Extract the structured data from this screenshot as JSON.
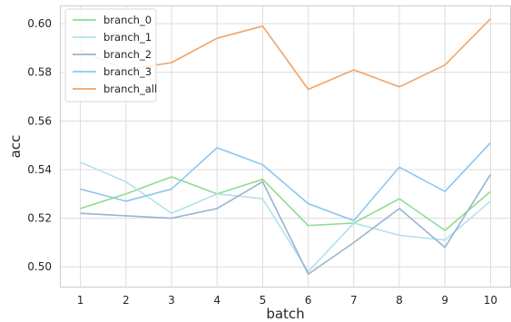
{
  "chart_data": {
    "type": "line",
    "title": "",
    "xlabel": "batch",
    "ylabel": "acc",
    "x": [
      1,
      2,
      3,
      4,
      5,
      6,
      7,
      8,
      9,
      10
    ],
    "xlim": [
      0.55,
      10.45
    ],
    "ylim": [
      0.4915,
      0.6075
    ],
    "yticks": [
      0.5,
      0.52,
      0.54,
      0.56,
      0.58,
      0.6
    ],
    "ytick_labels": [
      "0.50",
      "0.52",
      "0.54",
      "0.56",
      "0.58",
      "0.60"
    ],
    "xtick_labels": [
      "1",
      "2",
      "3",
      "4",
      "5",
      "6",
      "7",
      "8",
      "9",
      "10"
    ],
    "grid": true,
    "legend_position": "upper-left",
    "series": [
      {
        "name": "branch_0",
        "color": "#8fdc8f",
        "values": [
          0.524,
          0.53,
          0.537,
          0.53,
          0.536,
          0.517,
          0.518,
          0.528,
          0.515,
          0.531
        ]
      },
      {
        "name": "branch_1",
        "color": "#b3e0ee",
        "values": [
          0.543,
          0.535,
          0.522,
          0.53,
          0.528,
          0.498,
          0.518,
          0.513,
          0.511,
          0.527
        ]
      },
      {
        "name": "branch_2",
        "color": "#97b4d0",
        "values": [
          0.522,
          0.521,
          0.52,
          0.524,
          0.535,
          0.497,
          0.51,
          0.524,
          0.508,
          0.538
        ]
      },
      {
        "name": "branch_3",
        "color": "#8ec6ee",
        "values": [
          0.532,
          0.527,
          0.532,
          0.549,
          0.542,
          0.526,
          0.519,
          0.541,
          0.531,
          0.551
        ]
      },
      {
        "name": "branch_all",
        "color": "#f0a366",
        "values": [
          0.589,
          0.581,
          0.584,
          0.594,
          0.599,
          0.573,
          0.581,
          0.574,
          0.583,
          0.602
        ]
      }
    ]
  }
}
